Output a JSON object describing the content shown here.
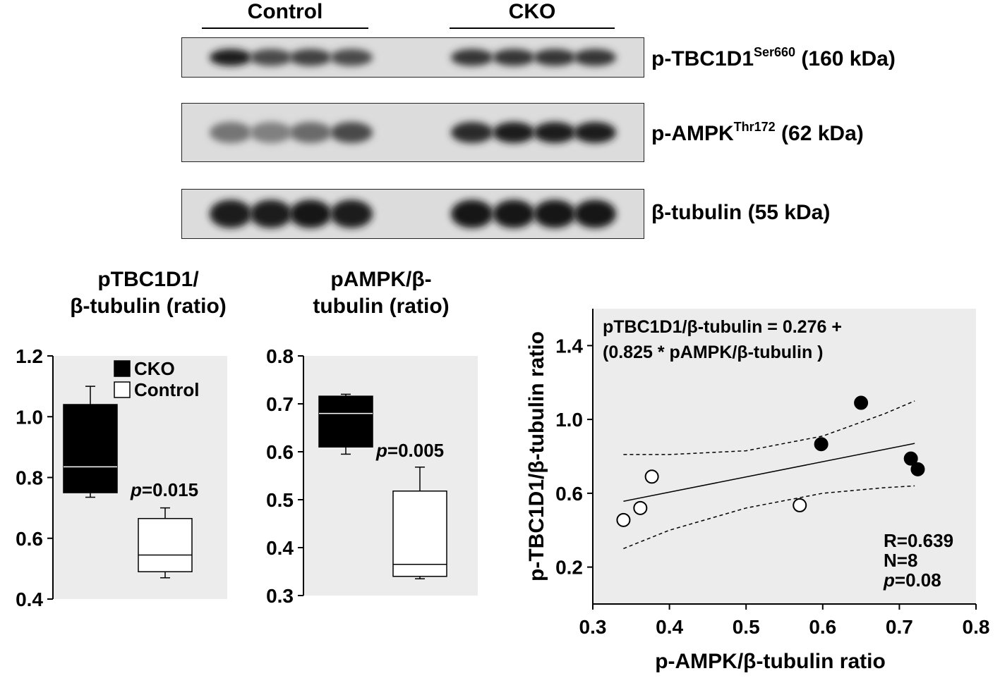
{
  "blot": {
    "groups": [
      "Control",
      "CKO"
    ],
    "rows": [
      {
        "label": "p-TBC1D1",
        "sup": "Ser660",
        "suffix": " (160 kDa)",
        "intensities": [
          0.95,
          0.75,
          0.8,
          0.75,
          0,
          0.85,
          0.85,
          0.85,
          0.85
        ]
      },
      {
        "label": "p-AMPK",
        "sup": "Thr172",
        "suffix": " (62 kDa)",
        "intensities": [
          0.55,
          0.5,
          0.6,
          0.75,
          0,
          0.9,
          0.95,
          0.95,
          0.95
        ]
      },
      {
        "label": "β-tubulin",
        "sup": "",
        "suffix": " (55 kDa)",
        "intensities": [
          0.95,
          0.95,
          1.0,
          0.95,
          0,
          1.0,
          1.0,
          1.0,
          1.0
        ]
      }
    ]
  },
  "chart_data": [
    {
      "type": "box",
      "title_lines": [
        "pTBC1D1/",
        "β-tubulin (ratio)"
      ],
      "ylim": [
        0.4,
        1.2
      ],
      "yticks": [
        "0.4",
        "0.6",
        "0.8",
        "1.0",
        "1.2"
      ],
      "ytick_values": [
        0.4,
        0.6,
        0.8,
        1.0,
        1.2
      ],
      "legend": [
        {
          "name": "CKO",
          "color": "#000000"
        },
        {
          "name": "Control",
          "color": "#ffffff"
        }
      ],
      "pvalue_label": "p",
      "pvalue_text": "=0.015",
      "series": [
        {
          "name": "CKO",
          "color": "#000000",
          "whisker_low": 0.735,
          "q1": 0.75,
          "median": 0.835,
          "q3": 1.04,
          "whisker_high": 1.1
        },
        {
          "name": "Control",
          "color": "#ffffff",
          "whisker_low": 0.47,
          "q1": 0.49,
          "median": 0.545,
          "q3": 0.665,
          "whisker_high": 0.7
        }
      ]
    },
    {
      "type": "box",
      "title_lines": [
        "pAMPK/β-",
        "tubulin (ratio)"
      ],
      "ylim": [
        0.3,
        0.8
      ],
      "yticks": [
        "0.3",
        "0.4",
        "0.5",
        "0.6",
        "0.7",
        "0.8"
      ],
      "ytick_values": [
        0.3,
        0.4,
        0.5,
        0.6,
        0.7,
        0.8
      ],
      "pvalue_label": "p",
      "pvalue_text": "=0.005",
      "series": [
        {
          "name": "CKO",
          "color": "#000000",
          "whisker_low": 0.595,
          "q1": 0.61,
          "median": 0.68,
          "q3": 0.716,
          "whisker_high": 0.72
        },
        {
          "name": "Control",
          "color": "#ffffff",
          "whisker_low": 0.335,
          "q1": 0.34,
          "median": 0.365,
          "q3": 0.518,
          "whisker_high": 0.568
        }
      ]
    },
    {
      "type": "scatter",
      "xlabel": "p-AMPK/β-tubulin ratio",
      "ylabel": "p-TBC1D1/β-tubulin ratio",
      "xlim": [
        0.3,
        0.8
      ],
      "ylim": [
        0.0,
        1.6
      ],
      "xticks": [
        "0.3",
        "0.4",
        "0.5",
        "0.6",
        "0.7",
        "0.8"
      ],
      "xtick_values": [
        0.3,
        0.4,
        0.5,
        0.6,
        0.7,
        0.8
      ],
      "yticks": [
        "0.2",
        "0.6",
        "1.0",
        "1.4"
      ],
      "ytick_values": [
        0.2,
        0.6,
        1.0,
        1.4
      ],
      "equation_lines": [
        "pTBC1D1/β-tubulin  = 0.276 +",
        "(0.825 * pAMPK/β-tubulin  )"
      ],
      "stats": {
        "r": "R=0.639",
        "n": "N=8",
        "p_label": "p",
        "p_text": "=0.08"
      },
      "regression": {
        "intercept": 0.276,
        "slope": 0.825,
        "x_range": [
          0.34,
          0.72
        ]
      },
      "confidence_band": {
        "upper": [
          [
            0.34,
            0.81
          ],
          [
            0.4,
            0.81
          ],
          [
            0.5,
            0.83
          ],
          [
            0.6,
            0.91
          ],
          [
            0.68,
            1.03
          ],
          [
            0.72,
            1.1
          ]
        ],
        "lower": [
          [
            0.34,
            0.3
          ],
          [
            0.4,
            0.4
          ],
          [
            0.5,
            0.52
          ],
          [
            0.6,
            0.6
          ],
          [
            0.68,
            0.63
          ],
          [
            0.72,
            0.64
          ]
        ]
      },
      "series": [
        {
          "name": "CKO",
          "color": "#000000",
          "points": [
            [
              0.65,
              1.09
            ],
            [
              0.598,
              0.866
            ],
            [
              0.715,
              0.788
            ],
            [
              0.724,
              0.73
            ]
          ]
        },
        {
          "name": "Control",
          "color": "#ffffff",
          "points": [
            [
              0.377,
              0.69
            ],
            [
              0.34,
              0.455
            ],
            [
              0.362,
              0.52
            ],
            [
              0.57,
              0.535
            ]
          ]
        }
      ]
    }
  ]
}
